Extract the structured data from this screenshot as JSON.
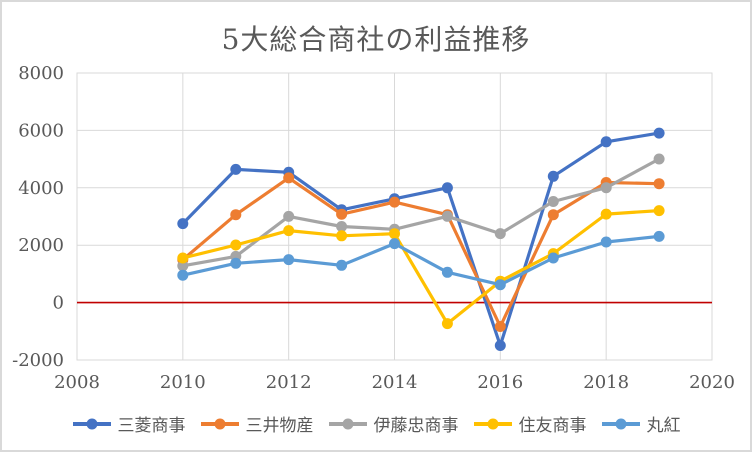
{
  "chart_data": {
    "type": "line",
    "title": "5大総合商社の利益推移",
    "x": [
      2010,
      2011,
      2012,
      2013,
      2014,
      2015,
      2016,
      2017,
      2018,
      2019
    ],
    "series": [
      {
        "name": "三菱商事",
        "color": "#4472C4",
        "values": [
          2751,
          4641,
          4539,
          3234,
          3615,
          4001,
          -1494,
          4402,
          5602,
          5907
        ]
      },
      {
        "name": "三井物産",
        "color": "#ED7D31",
        "values": [
          1496,
          3064,
          4345,
          3079,
          3502,
          3064,
          -834,
          3061,
          4185,
          4142
        ]
      },
      {
        "name": "伊藤忠商事",
        "color": "#A5A5A5",
        "values": [
          1281,
          1610,
          3005,
          2650,
          2554,
          3006,
          2403,
          3522,
          4003,
          5005
        ]
      },
      {
        "name": "住友商事",
        "color": "#FFC000",
        "values": [
          1553,
          2007,
          2507,
          2326,
          2400,
          -732,
          745,
          1708,
          3085,
          3205
        ]
      },
      {
        "name": "丸紅",
        "color": "#5B9BD5",
        "values": [
          953,
          1369,
          1500,
          1301,
          2056,
          1056,
          623,
          1553,
          2113,
          2308
        ]
      }
    ],
    "xlim": [
      2008,
      2020
    ],
    "ylim": [
      -2000,
      8000
    ],
    "xticks": [
      2008,
      2010,
      2012,
      2014,
      2016,
      2018,
      2020
    ],
    "yticks": [
      8000,
      6000,
      4000,
      2000,
      0,
      -2000
    ],
    "xlabel": "",
    "ylabel": "",
    "grid": true,
    "legend_position": "bottom",
    "colors": {
      "grid": "#D9D9D9",
      "plot_border": "#D9D9D9",
      "zero_line": "#C00000",
      "axis_text": "#595959",
      "title_text": "#595959",
      "frame_border": "#D9D9D9",
      "background": "#FFFFFF"
    }
  }
}
